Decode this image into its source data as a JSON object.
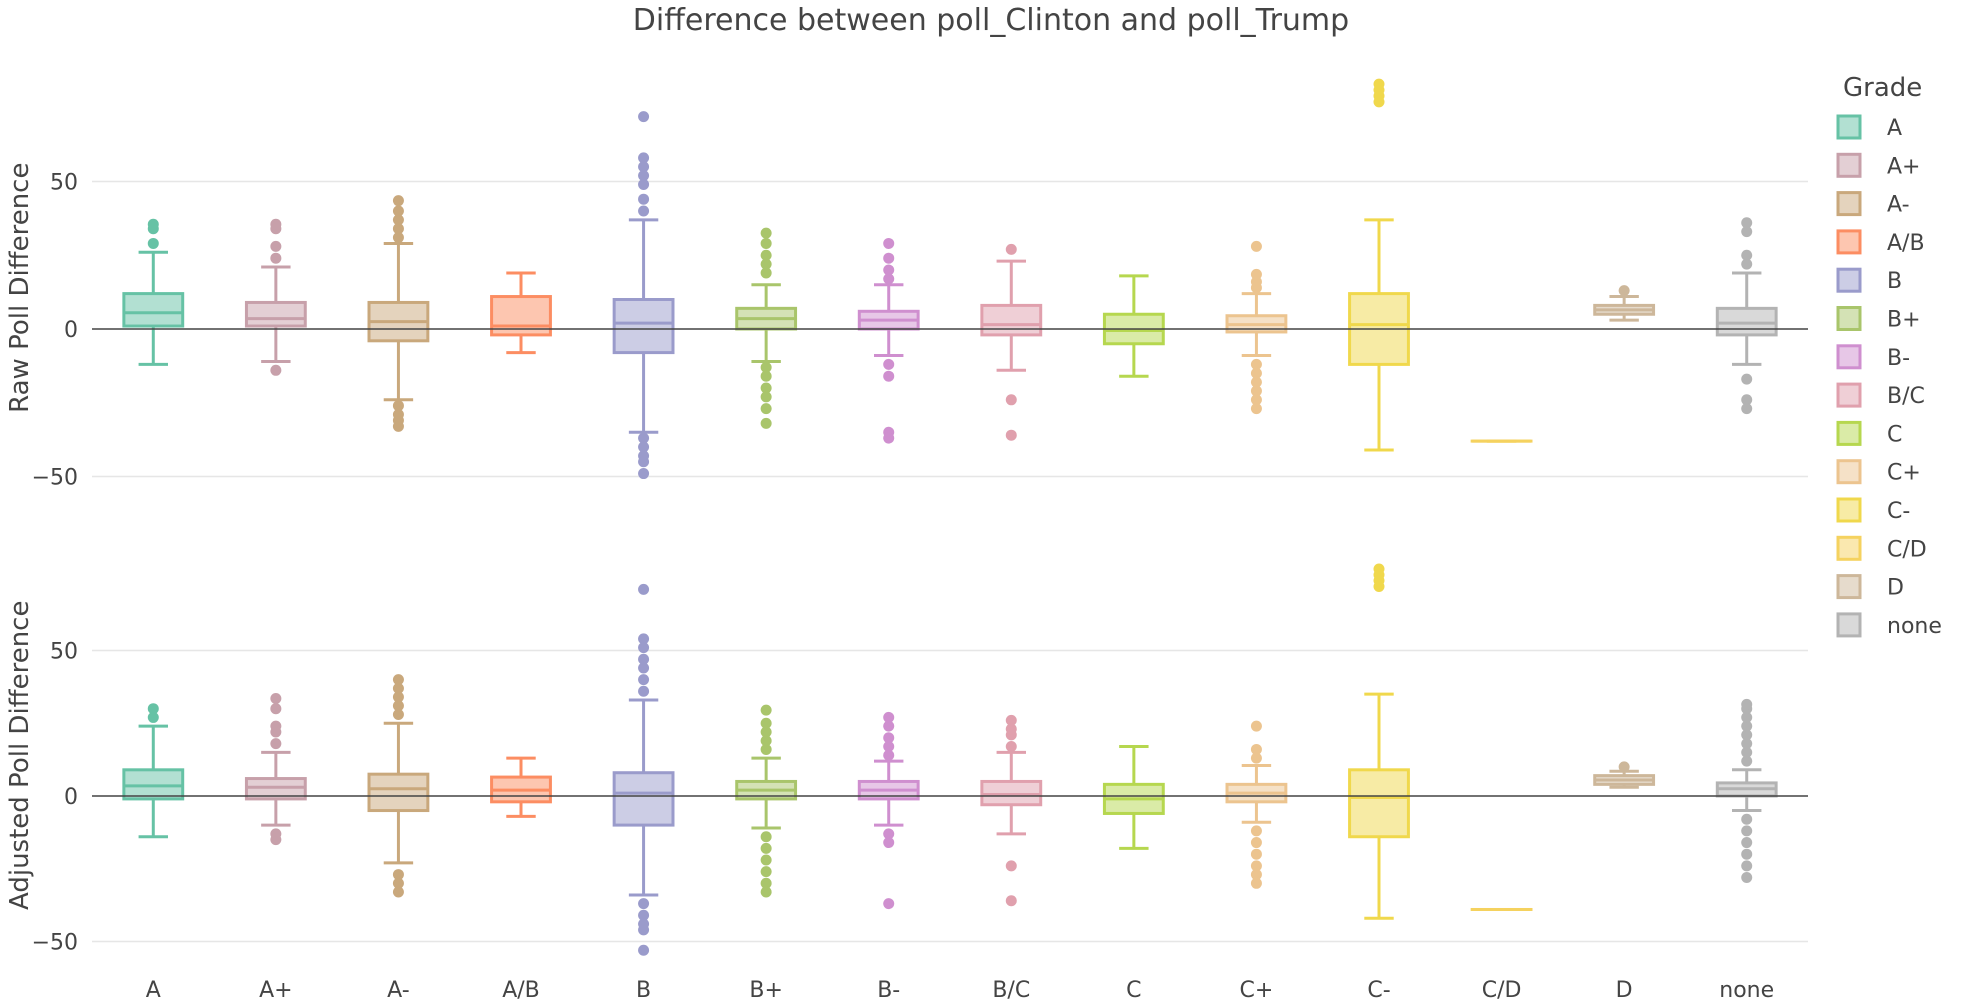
{
  "chart_data": {
    "type": "box",
    "title": "Difference between poll_Clinton and poll_Trump",
    "categories": [
      "A",
      "A+",
      "A-",
      "A/B",
      "B",
      "B+",
      "B-",
      "B/C",
      "C",
      "C+",
      "C-",
      "C/D",
      "D",
      "none"
    ],
    "legend": {
      "title": "Grade",
      "position": "right",
      "entries": [
        "A",
        "A+",
        "A-",
        "A/B",
        "B",
        "B+",
        "B-",
        "B/C",
        "C",
        "C+",
        "C-",
        "C/D",
        "D",
        "none"
      ]
    },
    "colors": {
      "A": "#66c2a5",
      "A+": "#c7a0aa",
      "A-": "#c9a87c",
      "A/B": "#fc8d62",
      "B": "#9a9bcb",
      "B+": "#a9c56b",
      "B-": "#cf8fcf",
      "B/C": "#e0a0ad",
      "C": "#b6d74f",
      "C+": "#ecc48f",
      "C-": "#f0d84c",
      "C/D": "#f5d25f",
      "D": "#cdb79a",
      "none": "#b3b3b3"
    },
    "grid": true,
    "zero_line": true,
    "panels": [
      {
        "ylabel": "Raw Poll Difference",
        "ylim": [
          -55,
          83
        ],
        "yticks": [
          -50,
          0,
          50
        ],
        "series": [
          {
            "grade": "A",
            "q1": 1,
            "median": 5.5,
            "q3": 12,
            "lower": -12,
            "upper": 26,
            "outliers": [
              29,
              34,
              35.5
            ]
          },
          {
            "grade": "A+",
            "q1": 1,
            "median": 3.5,
            "q3": 9,
            "lower": -11,
            "upper": 21,
            "outliers": [
              -14,
              24,
              28,
              34,
              35.5
            ]
          },
          {
            "grade": "A-",
            "q1": -4,
            "median": 2.5,
            "q3": 9,
            "lower": -24,
            "upper": 29,
            "outliers": [
              -26,
              -29,
              -31,
              -33,
              31,
              34,
              37,
              40,
              43.5
            ]
          },
          {
            "grade": "A/B",
            "q1": -2,
            "median": 1,
            "q3": 11,
            "lower": -8,
            "upper": 19,
            "outliers": []
          },
          {
            "grade": "B",
            "q1": -8,
            "median": 2,
            "q3": 10,
            "lower": -35,
            "upper": 37,
            "outliers": [
              -37,
              -40,
              -43,
              -45,
              -49,
              40,
              44,
              49,
              52,
              55,
              58,
              72
            ]
          },
          {
            "grade": "B+",
            "q1": 0,
            "median": 3.5,
            "q3": 7,
            "lower": -11,
            "upper": 15,
            "outliers": [
              -13,
              -16,
              -20,
              -23,
              -27,
              -32,
              19,
              22,
              25,
              29,
              32.5
            ]
          },
          {
            "grade": "B-",
            "q1": 0,
            "median": 3,
            "q3": 6,
            "lower": -9,
            "upper": 15,
            "outliers": [
              -12,
              -16,
              -35,
              -37,
              17,
              20,
              24,
              29
            ]
          },
          {
            "grade": "B/C",
            "q1": -2,
            "median": 1.5,
            "q3": 8,
            "lower": -14,
            "upper": 23,
            "outliers": [
              -24,
              -36,
              27
            ]
          },
          {
            "grade": "C",
            "q1": -5,
            "median": -0.5,
            "q3": 5,
            "lower": -16,
            "upper": 18,
            "outliers": []
          },
          {
            "grade": "C+",
            "q1": -1,
            "median": 1.5,
            "q3": 4.5,
            "lower": -9,
            "upper": 12,
            "outliers": [
              -12,
              -15,
              -18,
              -21,
              -24,
              -27,
              14,
              16,
              18.5,
              28
            ]
          },
          {
            "grade": "C-",
            "q1": -12,
            "median": 1.5,
            "q3": 12,
            "lower": -41,
            "upper": 37,
            "outliers": [
              77,
              79,
              81,
              83
            ]
          },
          {
            "grade": "C/D",
            "q1": -38,
            "median": -38,
            "q3": -38,
            "lower": -38,
            "upper": -38,
            "outliers": []
          },
          {
            "grade": "D",
            "q1": 5,
            "median": 6.5,
            "q3": 8,
            "lower": 3,
            "upper": 11,
            "outliers": [
              13
            ]
          },
          {
            "grade": "none",
            "q1": -2,
            "median": 2,
            "q3": 7,
            "lower": -12,
            "upper": 19,
            "outliers": [
              -17,
              -24,
              -27,
              22,
              25,
              33,
              36
            ]
          }
        ]
      },
      {
        "ylabel": "Adjusted Poll Difference",
        "ylim": [
          -55,
          83
        ],
        "yticks": [
          -50,
          0,
          50
        ],
        "series": [
          {
            "grade": "A",
            "q1": -1,
            "median": 3.5,
            "q3": 9,
            "lower": -14,
            "upper": 24,
            "outliers": [
              27,
              30
            ]
          },
          {
            "grade": "A+",
            "q1": -1,
            "median": 3,
            "q3": 6,
            "lower": -10,
            "upper": 15,
            "outliers": [
              -13,
              -15,
              18,
              22,
              24,
              30,
              33.5
            ]
          },
          {
            "grade": "A-",
            "q1": -5,
            "median": 2.5,
            "q3": 7.5,
            "lower": -23,
            "upper": 25,
            "outliers": [
              -27,
              -30,
              -33,
              28,
              31,
              34,
              37,
              40
            ]
          },
          {
            "grade": "A/B",
            "q1": -2,
            "median": 2,
            "q3": 6.5,
            "lower": -7,
            "upper": 13,
            "outliers": []
          },
          {
            "grade": "B",
            "q1": -10,
            "median": 1,
            "q3": 8,
            "lower": -34,
            "upper": 33,
            "outliers": [
              -37,
              -41,
              -44,
              -46,
              -53,
              36,
              40,
              44,
              47,
              51,
              54,
              71
            ]
          },
          {
            "grade": "B+",
            "q1": -1,
            "median": 2,
            "q3": 5,
            "lower": -11,
            "upper": 13,
            "outliers": [
              -14,
              -18,
              -22,
              -26,
              -30,
              -33,
              16,
              19,
              22,
              25,
              29.5
            ]
          },
          {
            "grade": "B-",
            "q1": -1,
            "median": 2,
            "q3": 5,
            "lower": -10,
            "upper": 12,
            "outliers": [
              -13,
              -16,
              -37,
              14,
              17,
              20,
              24,
              27
            ]
          },
          {
            "grade": "B/C",
            "q1": -3,
            "median": 0.5,
            "q3": 5,
            "lower": -13,
            "upper": 15,
            "outliers": [
              -24,
              -36,
              17,
              21,
              23,
              26
            ]
          },
          {
            "grade": "C",
            "q1": -6,
            "median": -1,
            "q3": 4,
            "lower": -18,
            "upper": 17,
            "outliers": []
          },
          {
            "grade": "C+",
            "q1": -2,
            "median": 1,
            "q3": 4,
            "lower": -9,
            "upper": 10.5,
            "outliers": [
              -12,
              -16,
              -20,
              -24,
              -27,
              -30,
              13,
              16,
              24
            ]
          },
          {
            "grade": "C-",
            "q1": -14,
            "median": -0.5,
            "q3": 9,
            "lower": -42,
            "upper": 35,
            "outliers": [
              72,
              74,
              76,
              78
            ]
          },
          {
            "grade": "C/D",
            "q1": -39,
            "median": -39,
            "q3": -39,
            "lower": -39,
            "upper": -39,
            "outliers": []
          },
          {
            "grade": "D",
            "q1": 4,
            "median": 5.5,
            "q3": 7,
            "lower": 3,
            "upper": 8.5,
            "outliers": [
              10
            ]
          },
          {
            "grade": "none",
            "q1": 0,
            "median": 2.5,
            "q3": 4.5,
            "lower": -5,
            "upper": 9,
            "outliers": [
              -8,
              -12,
              -16,
              -20,
              -24,
              -28,
              12,
              15,
              18,
              21,
              24,
              27,
              30,
              31.5
            ]
          }
        ]
      }
    ]
  }
}
